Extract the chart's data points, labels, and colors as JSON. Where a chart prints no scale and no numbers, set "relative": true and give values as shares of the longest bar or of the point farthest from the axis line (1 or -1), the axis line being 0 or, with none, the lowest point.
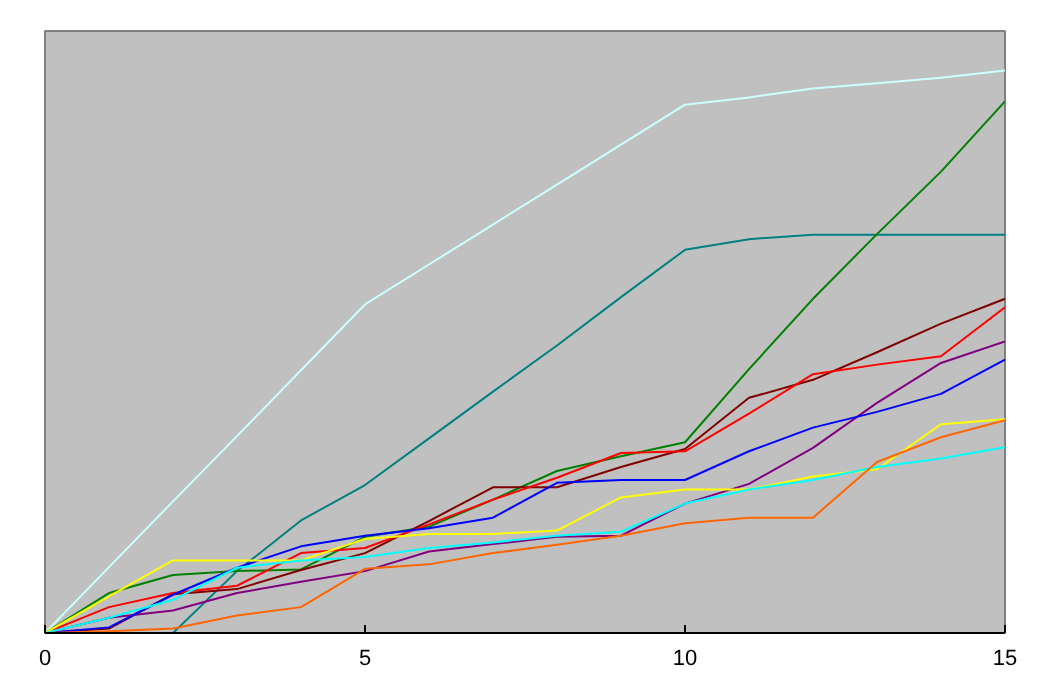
{
  "chart_data": {
    "type": "line",
    "relative": true,
    "x": [
      0,
      1,
      2,
      3,
      4,
      5,
      6,
      7,
      8,
      9,
      10,
      11,
      12,
      13,
      14,
      15
    ],
    "xlim": [
      0,
      15
    ],
    "xticks": [
      0,
      5,
      10,
      15
    ],
    "tick_labels": "x",
    "grid": false,
    "series": [
      {
        "color": "#ccffff",
        "values": [
          0,
          0.117,
          0.234,
          0.35,
          0.467,
          0.584,
          0.655,
          0.726,
          0.797,
          0.868,
          0.939,
          0.952,
          0.968,
          0.977,
          0.987,
          1.0
        ]
      },
      {
        "color": "#008080",
        "values": [
          0,
          0,
          0,
          0.11,
          0.2,
          0.263,
          0.346,
          0.429,
          0.511,
          0.597,
          0.681,
          0.7,
          0.708,
          0.708,
          0.708,
          0.708
        ]
      },
      {
        "color": "#008000",
        "values": [
          0,
          0.071,
          0.103,
          0.11,
          0.113,
          0.171,
          0.189,
          0.237,
          0.288,
          0.314,
          0.339,
          0.469,
          0.594,
          0.709,
          0.82,
          0.945
        ]
      },
      {
        "color": "#800000",
        "values": [
          0,
          0.008,
          0.069,
          0.078,
          0.112,
          0.142,
          0.199,
          0.259,
          0.259,
          0.295,
          0.327,
          0.418,
          0.45,
          0.499,
          0.55,
          0.594
        ]
      },
      {
        "color": "#ff0000",
        "values": [
          0,
          0.046,
          0.071,
          0.084,
          0.142,
          0.151,
          0.193,
          0.237,
          0.276,
          0.32,
          0.323,
          0.39,
          0.46,
          0.477,
          0.492,
          0.579
        ]
      },
      {
        "color": "#800080",
        "values": [
          0,
          0.027,
          0.04,
          0.071,
          0.091,
          0.11,
          0.145,
          0.158,
          0.171,
          0.173,
          0.23,
          0.265,
          0.329,
          0.409,
          0.48,
          0.518
        ]
      },
      {
        "color": "#0000ff",
        "values": [
          0,
          0.01,
          0.068,
          0.116,
          0.154,
          0.173,
          0.186,
          0.205,
          0.267,
          0.272,
          0.272,
          0.323,
          0.365,
          0.393,
          0.425,
          0.486
        ]
      },
      {
        "color": "#ffff00",
        "values": [
          0,
          0.065,
          0.129,
          0.129,
          0.129,
          0.167,
          0.176,
          0.176,
          0.182,
          0.241,
          0.255,
          0.255,
          0.278,
          0.291,
          0.371,
          0.38
        ]
      },
      {
        "color": "#00ffff",
        "values": [
          0,
          0.027,
          0.059,
          0.116,
          0.129,
          0.135,
          0.151,
          0.161,
          0.173,
          0.18,
          0.23,
          0.255,
          0.272,
          0.295,
          0.31,
          0.33
        ]
      },
      {
        "color": "#ff6600",
        "values": [
          0,
          0.003,
          0.008,
          0.031,
          0.046,
          0.114,
          0.122,
          0.142,
          0.157,
          0.173,
          0.195,
          0.205,
          0.205,
          0.304,
          0.348,
          0.378
        ]
      }
    ]
  }
}
